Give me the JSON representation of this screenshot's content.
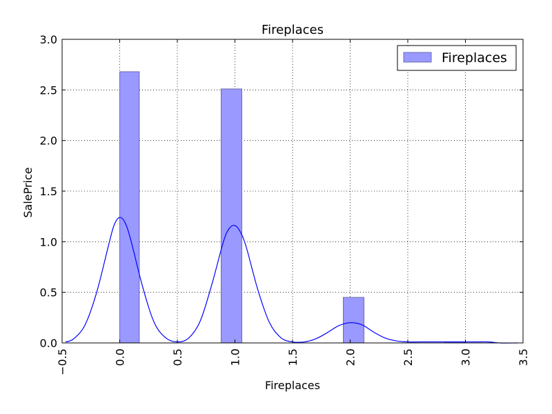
{
  "chart_data": {
    "type": "bar",
    "title": "Fireplaces",
    "xlabel": "Fireplaces",
    "ylabel": "SalePrice",
    "xlim": [
      -0.5,
      3.5
    ],
    "ylim": [
      0,
      3.0
    ],
    "xticks": [
      "−0.5",
      "0.0",
      "0.5",
      "1.0",
      "1.5",
      "2.0",
      "2.5",
      "3.0",
      "3.5"
    ],
    "xtick_values": [
      -0.5,
      0.0,
      0.5,
      1.0,
      1.5,
      2.0,
      2.5,
      3.0,
      3.5
    ],
    "yticks": [
      "0.0",
      "0.5",
      "1.0",
      "1.5",
      "2.0",
      "2.5",
      "3.0"
    ],
    "ytick_values": [
      0.0,
      0.5,
      1.0,
      1.5,
      2.0,
      2.5,
      3.0
    ],
    "grid": true,
    "legend_position": "top-right",
    "bar_color": "#9999ff",
    "bar_edge_color": "#6b6bb0",
    "kde_color": "#0000ff",
    "histogram": {
      "name": "Fireplaces",
      "bins": [
        {
          "x0": 0.0,
          "x1": 0.17,
          "height": 2.68
        },
        {
          "x0": 0.88,
          "x1": 1.06,
          "height": 2.51
        },
        {
          "x0": 1.94,
          "x1": 2.12,
          "height": 0.45
        },
        {
          "x0": 2.82,
          "x1": 3.0,
          "height": 0.01
        }
      ]
    },
    "kde": {
      "x": [
        -0.47,
        -0.4,
        -0.3,
        -0.2,
        -0.1,
        -0.05,
        0.0,
        0.05,
        0.1,
        0.2,
        0.3,
        0.4,
        0.5,
        0.6,
        0.7,
        0.8,
        0.9,
        0.95,
        1.0,
        1.05,
        1.1,
        1.2,
        1.3,
        1.4,
        1.5,
        1.6,
        1.7,
        1.8,
        1.9,
        2.0,
        2.1,
        2.2,
        2.3,
        2.4,
        2.5,
        2.6,
        2.7,
        2.8,
        2.9,
        3.0,
        3.1,
        3.2,
        3.3,
        3.45
      ],
      "y": [
        0.01,
        0.04,
        0.18,
        0.5,
        0.95,
        1.16,
        1.24,
        1.18,
        1.0,
        0.55,
        0.2,
        0.05,
        0.01,
        0.05,
        0.22,
        0.58,
        1.0,
        1.13,
        1.16,
        1.09,
        0.94,
        0.52,
        0.2,
        0.05,
        0.01,
        0.01,
        0.04,
        0.1,
        0.17,
        0.2,
        0.18,
        0.11,
        0.05,
        0.02,
        0.01,
        0.01,
        0.01,
        0.01,
        0.01,
        0.01,
        0.01,
        0.01,
        0.0,
        0.0
      ]
    }
  }
}
